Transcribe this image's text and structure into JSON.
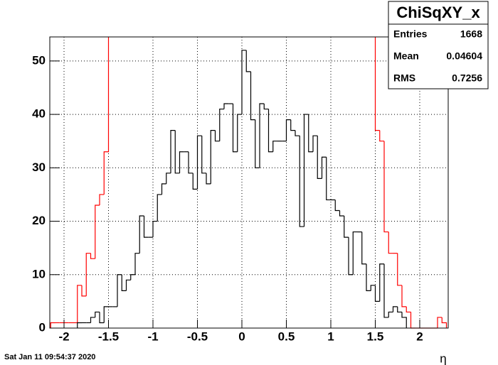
{
  "chart_data": {
    "type": "histogram",
    "xlabel": "η",
    "date": "Sat Jan 11 09:54:37 2020",
    "xlim": [
      -2.16,
      2.32
    ],
    "ylim": [
      0,
      54.5
    ],
    "xticks": [
      -2,
      -1.5,
      -1,
      -0.5,
      0,
      0.5,
      1,
      1.5,
      2
    ],
    "yticks": [
      0,
      10,
      20,
      30,
      40,
      50
    ],
    "grid": true,
    "histograms": [
      {
        "color": "#ff0000",
        "bins": [
          -2.15,
          -2.1,
          -2.05,
          -2,
          -1.95,
          -1.9,
          -1.85,
          -1.8,
          -1.75,
          -1.7,
          -1.65,
          -1.6,
          -1.55,
          -1.5
        ],
        "values": [
          1,
          1,
          1,
          1,
          1,
          1,
          8,
          6,
          14,
          13,
          23,
          25,
          33
        ]
      },
      {
        "color": "#ff0000",
        "bins": [
          1.5,
          1.55,
          1.6,
          1.65,
          1.7,
          1.75,
          1.8,
          1.85,
          1.9,
          1.95,
          2,
          2.05,
          2.1,
          2.15,
          2.2,
          2.25,
          2.3
        ],
        "values": [
          37,
          35,
          18,
          14,
          14,
          8,
          4,
          3,
          0,
          0,
          0,
          0,
          0,
          0,
          2,
          1
        ]
      },
      {
        "color": "#000000",
        "bins": [
          -1.85,
          -1.8,
          -1.75,
          -1.7,
          -1.65,
          -1.6,
          -1.55,
          -1.5,
          -1.45,
          -1.4,
          -1.35,
          -1.3,
          -1.25,
          -1.2,
          -1.15,
          -1.1,
          -1.05,
          -1,
          -0.95,
          -0.9,
          -0.85,
          -0.8,
          -0.75,
          -0.7,
          -0.65,
          -0.6,
          -0.55,
          -0.5,
          -0.45,
          -0.4,
          -0.35,
          -0.3,
          -0.25,
          -0.2,
          -0.15,
          -0.1,
          -0.05,
          0,
          0.05,
          0.1,
          0.15,
          0.2,
          0.25,
          0.3,
          0.35,
          0.4,
          0.45,
          0.5,
          0.55,
          0.6,
          0.65,
          0.7,
          0.75,
          0.8,
          0.85,
          0.9,
          0.95,
          1,
          1.05,
          1.1,
          1.15,
          1.2,
          1.25,
          1.3,
          1.35,
          1.4,
          1.45,
          1.5,
          1.55,
          1.6,
          1.65,
          1.7,
          1.75,
          1.8,
          1.85
        ],
        "values": [
          1,
          1,
          1,
          2,
          3,
          1,
          4,
          4,
          4,
          10,
          7,
          9,
          10,
          14,
          21,
          17,
          17,
          20,
          25,
          27,
          29,
          37,
          29,
          33,
          33,
          29,
          26,
          36,
          29,
          27,
          37,
          35,
          41,
          42,
          42,
          33,
          40,
          52,
          48,
          39,
          30,
          42,
          41,
          33,
          35,
          35,
          35,
          39,
          37,
          36,
          19,
          40,
          33,
          36,
          28,
          32,
          24,
          24,
          22,
          21,
          17,
          10,
          18,
          18,
          12,
          7,
          8,
          5,
          12,
          2,
          3,
          4,
          3,
          2
        ]
      }
    ],
    "stats": {
      "title": "ChiSqXY_x",
      "rows": [
        {
          "label": "Entries",
          "value": 1668
        },
        {
          "label": "Mean",
          "value": 0.04604
        },
        {
          "label": "RMS",
          "value": 0.7256
        }
      ]
    }
  }
}
